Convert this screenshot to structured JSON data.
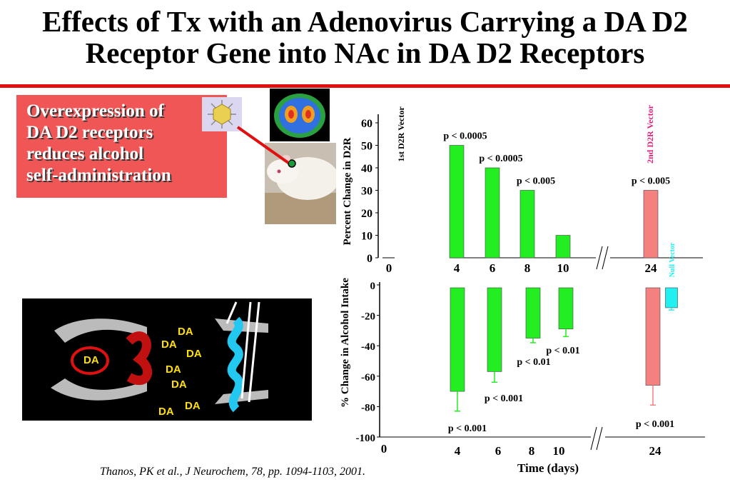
{
  "slide": {
    "title_line1": "Effects of Tx with an Adenovirus Carrying a DA D2",
    "title_line2": "Receptor Gene into NAc in DA D2 Receptors",
    "callout_lines": [
      "Overexpression of",
      "DA D2 receptors",
      "reduces alcohol",
      "self-administration"
    ],
    "citation": "Thanos, PK et al., J Neurochem, 78, pp. 1094-1103, 2001.",
    "schematic_labels": [
      "DA",
      "DA",
      "DA",
      "DA",
      "DA",
      "DA",
      "DA",
      "DA"
    ],
    "colors": {
      "title_rule": "#e01010",
      "callout_bg": "#f05656",
      "bar_green": "#22ee22",
      "bar_red": "#f58080",
      "null_vector": "#22f0f0"
    }
  },
  "chart_data": [
    {
      "type": "bar",
      "ylabel": "Percent Change in D2R",
      "x_ticks": [
        "0",
        "4",
        "6",
        "8",
        "10",
        "24"
      ],
      "ylim": [
        0,
        60
      ],
      "y_ticks": [
        "0",
        "10",
        "20",
        "30",
        "40",
        "50",
        "60"
      ],
      "axis_break": "between 10 and 24",
      "bars": [
        {
          "x": 4,
          "value": 50,
          "color": "green",
          "label": "p < 0.0005"
        },
        {
          "x": 6,
          "value": 40,
          "color": "green",
          "label": "p < 0.0005"
        },
        {
          "x": 8,
          "value": 30,
          "color": "green",
          "label": "p < 0.005"
        },
        {
          "x": 10,
          "value": 10,
          "color": "green",
          "label": ""
        },
        {
          "x": 24,
          "value": 30,
          "color": "red",
          "label": "p < 0.005"
        }
      ],
      "annotations": [
        "1st D2R Vector",
        "2nd D2R Vector"
      ]
    },
    {
      "type": "bar",
      "ylabel": "% Change in Alcohol Intake",
      "xlabel": "Time (days)",
      "x_ticks": [
        "0",
        "4",
        "6",
        "8",
        "10",
        "24"
      ],
      "ylim": [
        -100,
        0
      ],
      "y_ticks": [
        "0",
        "-20",
        "-40",
        "-60",
        "-80",
        "-100"
      ],
      "axis_break": "between 10 and 24",
      "bars": [
        {
          "x": 4,
          "value": -70,
          "error": 13,
          "color": "green",
          "label": "p < 0.001"
        },
        {
          "x": 6,
          "value": -57,
          "error": 7,
          "color": "green",
          "label": "p < 0.001"
        },
        {
          "x": 8,
          "value": -35,
          "error": 3,
          "color": "green",
          "label": "p < 0.01"
        },
        {
          "x": 10,
          "value": -29,
          "error": 5,
          "color": "green",
          "label": "p < 0.01"
        },
        {
          "x": 24,
          "value": -66,
          "error": 13,
          "color": "red",
          "label": "p < 0.001"
        },
        {
          "x": 24.6,
          "value": -15,
          "error": 1.5,
          "color": "cyan",
          "label": "Null Vector"
        }
      ]
    }
  ]
}
